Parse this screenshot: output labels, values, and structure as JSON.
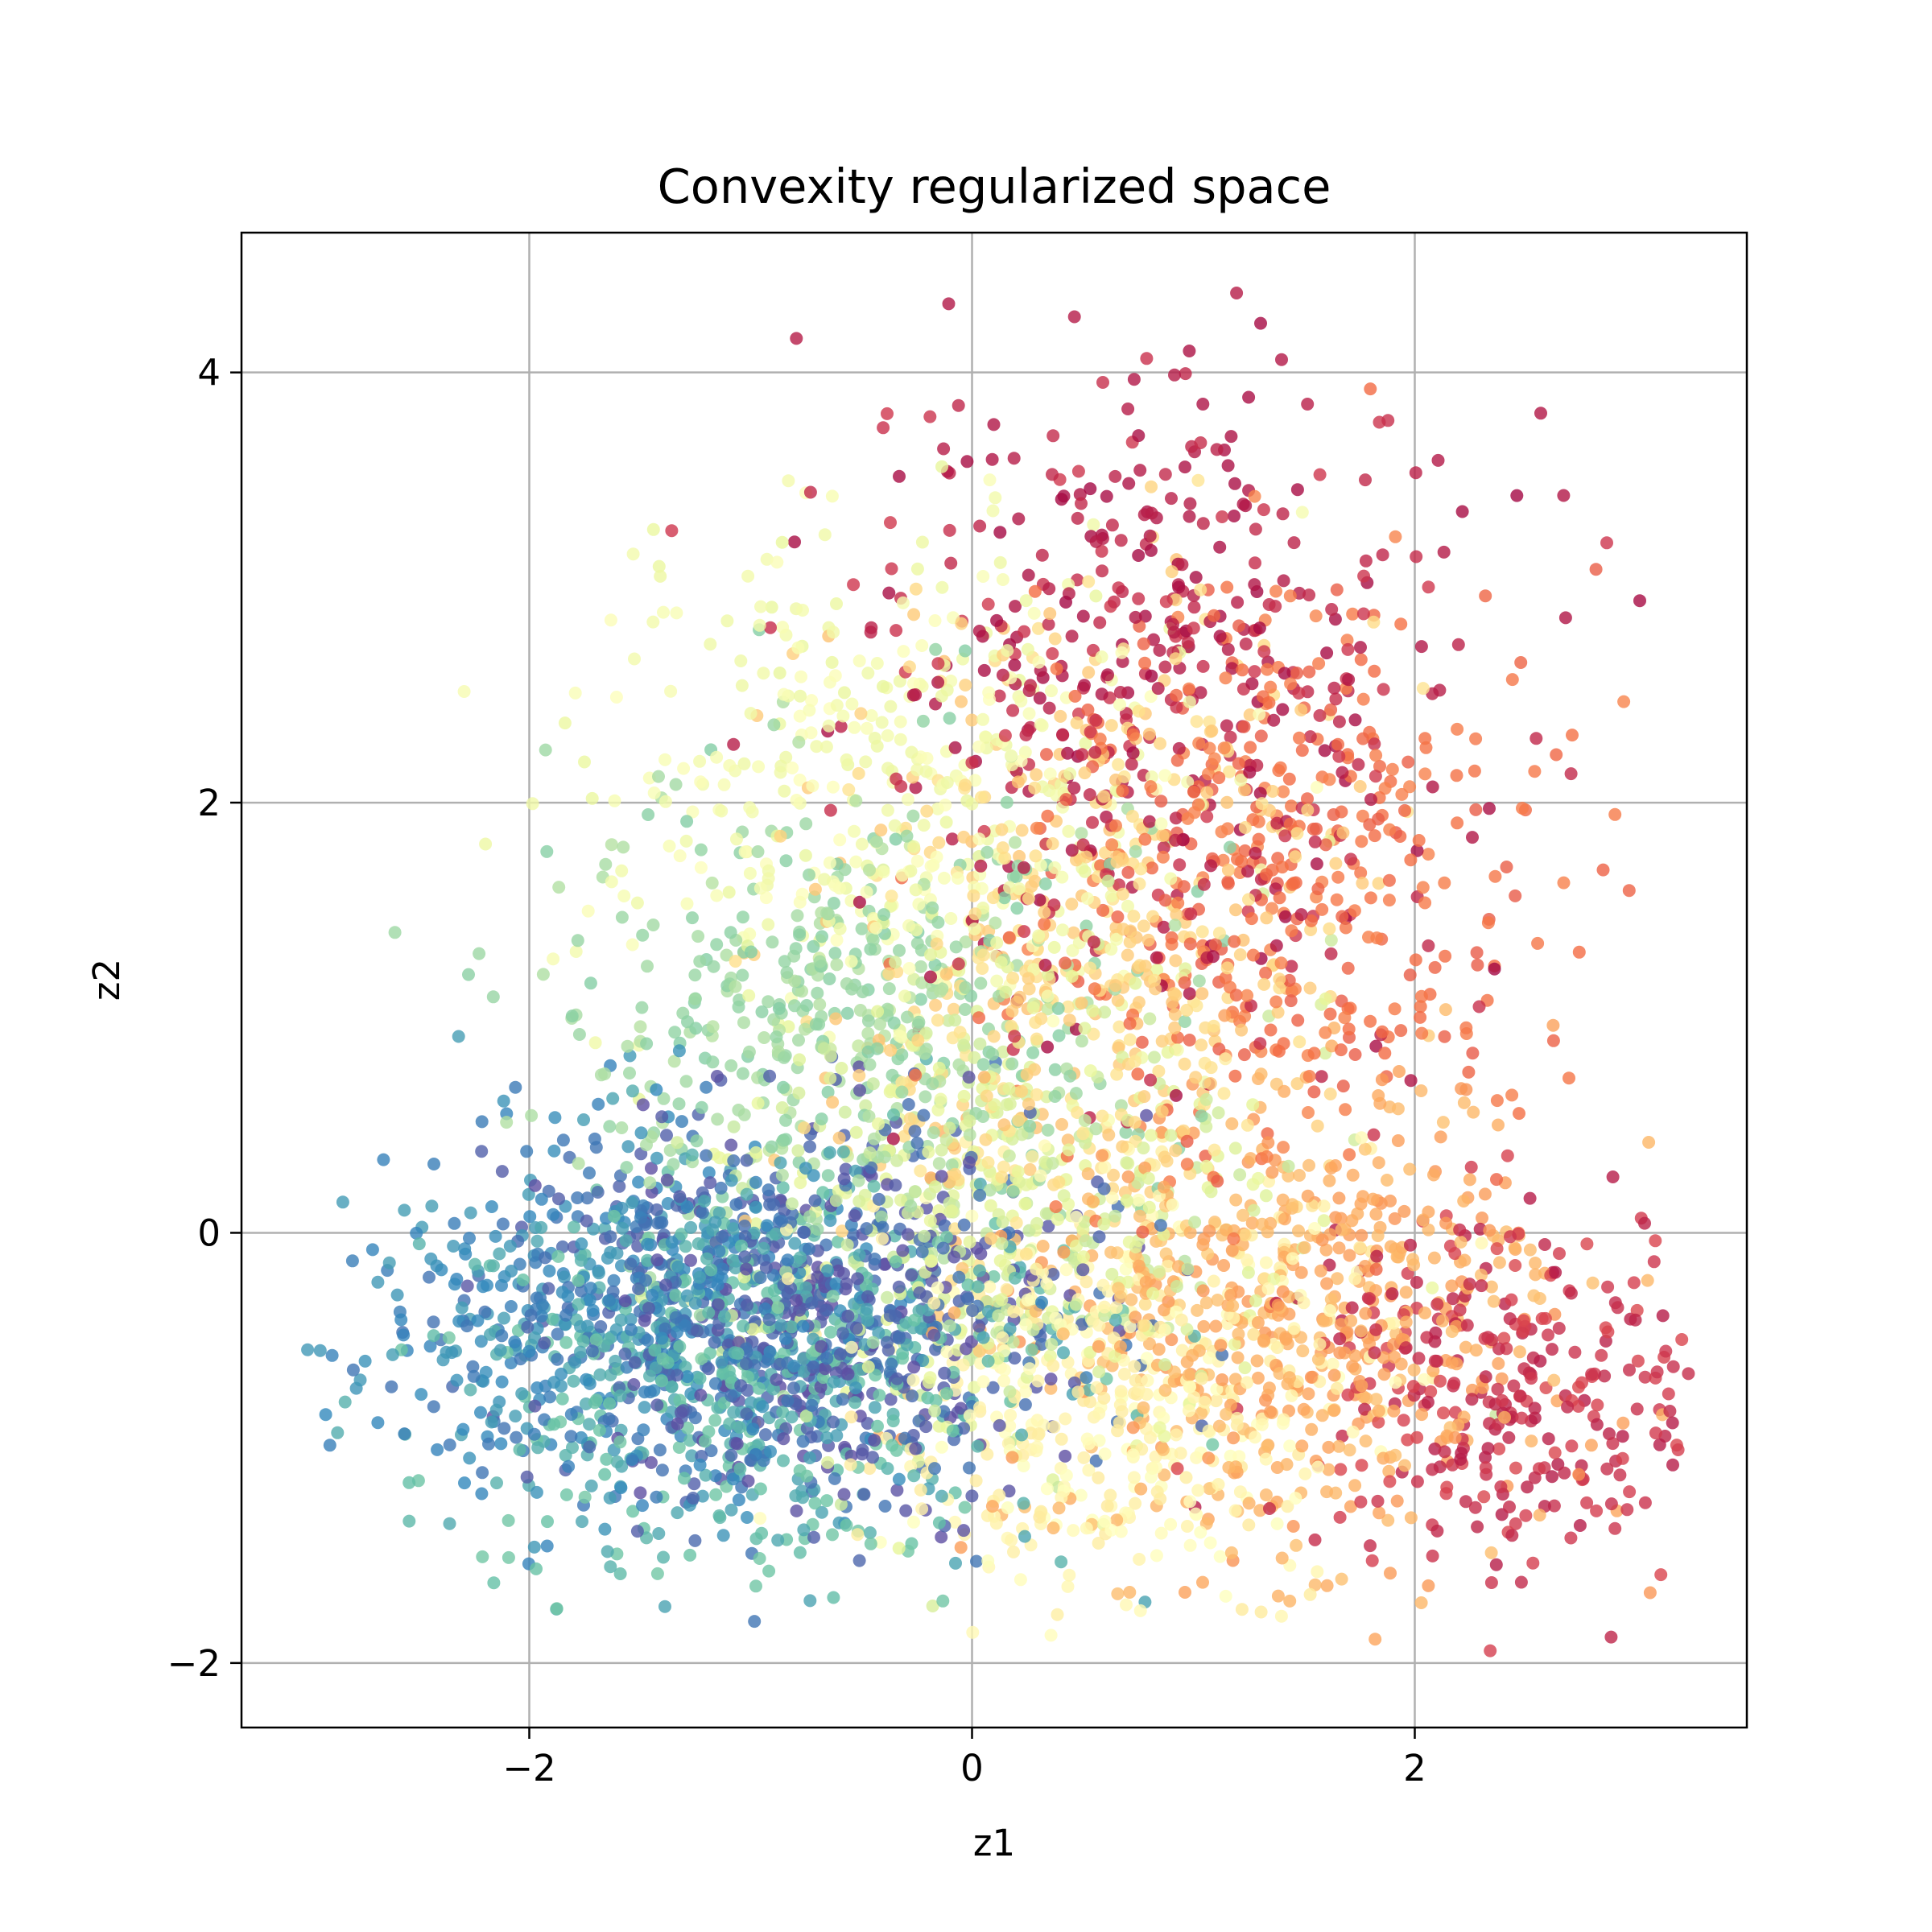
{
  "chart_data": {
    "type": "scatter",
    "title": "Convexity regularized space",
    "xlabel": "z1",
    "ylabel": "z2",
    "xlim": [
      -3.3,
      3.5
    ],
    "ylim": [
      -2.3,
      4.65
    ],
    "xticks": [
      -2,
      0,
      2
    ],
    "yticks": [
      -2,
      0,
      2,
      4
    ],
    "xtick_labels": [
      "−2",
      "0",
      "2"
    ],
    "ytick_labels": [
      "−2",
      "0",
      "2",
      "4"
    ],
    "grid": true,
    "colormap": "Spectral",
    "colormap_stops": [
      "#9e0142",
      "#d53e4f",
      "#f46d43",
      "#fdae61",
      "#fee08b",
      "#ffffbf",
      "#e6f598",
      "#abdda4",
      "#66c2a5",
      "#3288bd",
      "#5e4fa2"
    ],
    "point_alpha": 0.8,
    "clusters": [
      {
        "color_value": 0.05,
        "center": [
          0.9,
          2.6
        ],
        "spread": [
          0.7,
          0.8
        ],
        "count": 450
      },
      {
        "color_value": 0.08,
        "center": [
          2.4,
          -0.7
        ],
        "spread": [
          0.45,
          0.45
        ],
        "count": 300
      },
      {
        "color_value": 0.2,
        "center": [
          1.4,
          1.6
        ],
        "spread": [
          0.6,
          0.7
        ],
        "count": 400
      },
      {
        "color_value": 0.3,
        "center": [
          1.5,
          -0.4
        ],
        "spread": [
          0.6,
          0.55
        ],
        "count": 550
      },
      {
        "color_value": 0.38,
        "center": [
          0.5,
          1.2
        ],
        "spread": [
          0.6,
          0.8
        ],
        "count": 500
      },
      {
        "color_value": 0.47,
        "center": [
          0.7,
          -0.7
        ],
        "spread": [
          0.55,
          0.5
        ],
        "count": 450
      },
      {
        "color_value": 0.55,
        "center": [
          -0.3,
          2.0
        ],
        "spread": [
          0.7,
          0.6
        ],
        "count": 400
      },
      {
        "color_value": 0.62,
        "center": [
          0.2,
          0.2
        ],
        "spread": [
          0.6,
          0.6
        ],
        "count": 450
      },
      {
        "color_value": 0.72,
        "center": [
          -0.6,
          1.0
        ],
        "spread": [
          0.7,
          0.6
        ],
        "count": 450
      },
      {
        "color_value": 0.82,
        "center": [
          -1.0,
          -0.6
        ],
        "spread": [
          0.7,
          0.45
        ],
        "count": 550
      },
      {
        "color_value": 0.9,
        "center": [
          -1.6,
          -0.4
        ],
        "spread": [
          0.6,
          0.45
        ],
        "count": 500
      },
      {
        "color_value": 0.97,
        "center": [
          -0.7,
          -0.4
        ],
        "spread": [
          0.6,
          0.45
        ],
        "count": 650
      }
    ]
  }
}
